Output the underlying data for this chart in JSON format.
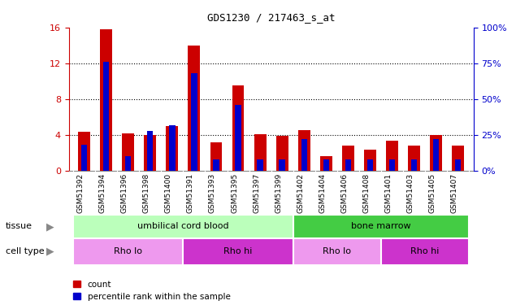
{
  "title": "GDS1230 / 217463_s_at",
  "samples": [
    "GSM51392",
    "GSM51394",
    "GSM51396",
    "GSM51398",
    "GSM51400",
    "GSM51391",
    "GSM51393",
    "GSM51395",
    "GSM51397",
    "GSM51399",
    "GSM51402",
    "GSM51404",
    "GSM51406",
    "GSM51408",
    "GSM51401",
    "GSM51403",
    "GSM51405",
    "GSM51407"
  ],
  "count_values": [
    4.4,
    15.8,
    4.2,
    4.0,
    5.0,
    14.0,
    3.2,
    9.5,
    4.1,
    3.9,
    4.5,
    1.6,
    2.8,
    2.4,
    3.4,
    2.8,
    4.0,
    2.8
  ],
  "percentile_values": [
    18.0,
    76.0,
    10.0,
    28.0,
    32.0,
    68.0,
    8.0,
    46.0,
    8.0,
    8.0,
    22.0,
    8.0,
    8.0,
    8.0,
    8.0,
    8.0,
    22.0,
    8.0
  ],
  "bar_color_red": "#cc0000",
  "bar_color_blue": "#0000cc",
  "ylim": [
    0,
    16
  ],
  "yticks": [
    0,
    4,
    8,
    12,
    16
  ],
  "y2ticks": [
    0,
    25,
    50,
    75,
    100
  ],
  "y2lim": [
    0,
    100
  ],
  "tissue_groups": [
    {
      "label": "umbilical cord blood",
      "start": 0,
      "end": 10,
      "color": "#bbffbb"
    },
    {
      "label": "bone marrow",
      "start": 10,
      "end": 18,
      "color": "#44cc44"
    }
  ],
  "cell_type_groups": [
    {
      "label": "Rho lo",
      "start": 0,
      "end": 5,
      "color": "#ee99ee"
    },
    {
      "label": "Rho hi",
      "start": 5,
      "end": 10,
      "color": "#cc33cc"
    },
    {
      "label": "Rho lo",
      "start": 10,
      "end": 14,
      "color": "#ee99ee"
    },
    {
      "label": "Rho hi",
      "start": 14,
      "end": 18,
      "color": "#cc33cc"
    }
  ],
  "legend_count_label": "count",
  "legend_pct_label": "percentile rank within the sample",
  "tissue_label": "tissue",
  "cell_type_label": "cell type",
  "bar_width": 0.55,
  "xtick_bg": "#cccccc"
}
